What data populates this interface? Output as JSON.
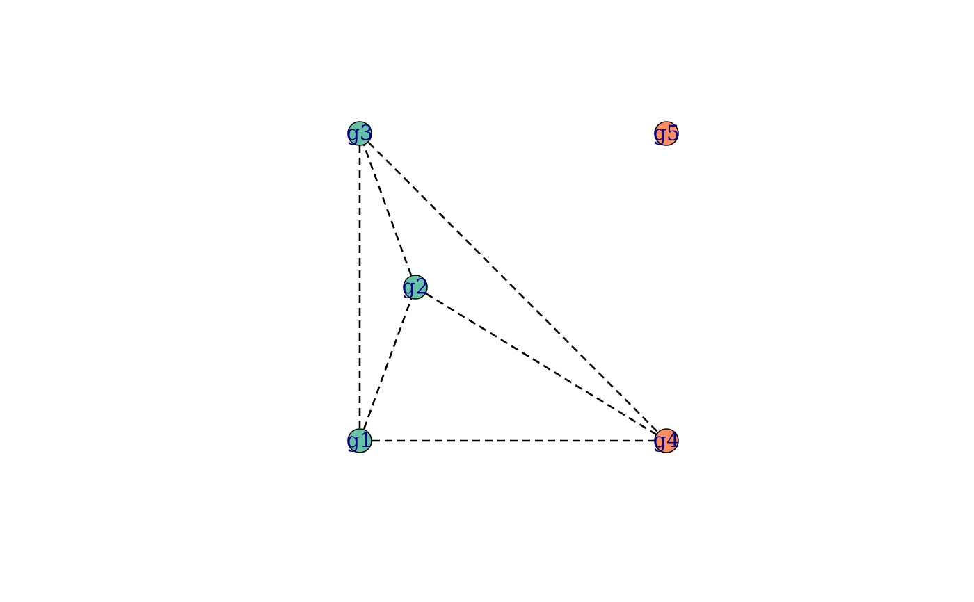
{
  "graph": {
    "groups": {
      "a": {
        "color": "#66c2a5"
      },
      "b": {
        "color": "#fc8d62"
      }
    },
    "label_color": "#00008b",
    "edge_color": "#000000",
    "edge_style": "dashed",
    "nodes": [
      {
        "id": "g1",
        "label": "g1",
        "group": "a"
      },
      {
        "id": "g2",
        "label": "g2",
        "group": "a"
      },
      {
        "id": "g3",
        "label": "g3",
        "group": "a"
      },
      {
        "id": "g4",
        "label": "g4",
        "group": "b"
      },
      {
        "id": "g5",
        "label": "g5",
        "group": "b"
      }
    ],
    "edges": [
      {
        "source": "g1",
        "target": "g2"
      },
      {
        "source": "g1",
        "target": "g3"
      },
      {
        "source": "g1",
        "target": "g4"
      },
      {
        "source": "g2",
        "target": "g3"
      },
      {
        "source": "g2",
        "target": "g4"
      },
      {
        "source": "g3",
        "target": "g4"
      }
    ]
  }
}
